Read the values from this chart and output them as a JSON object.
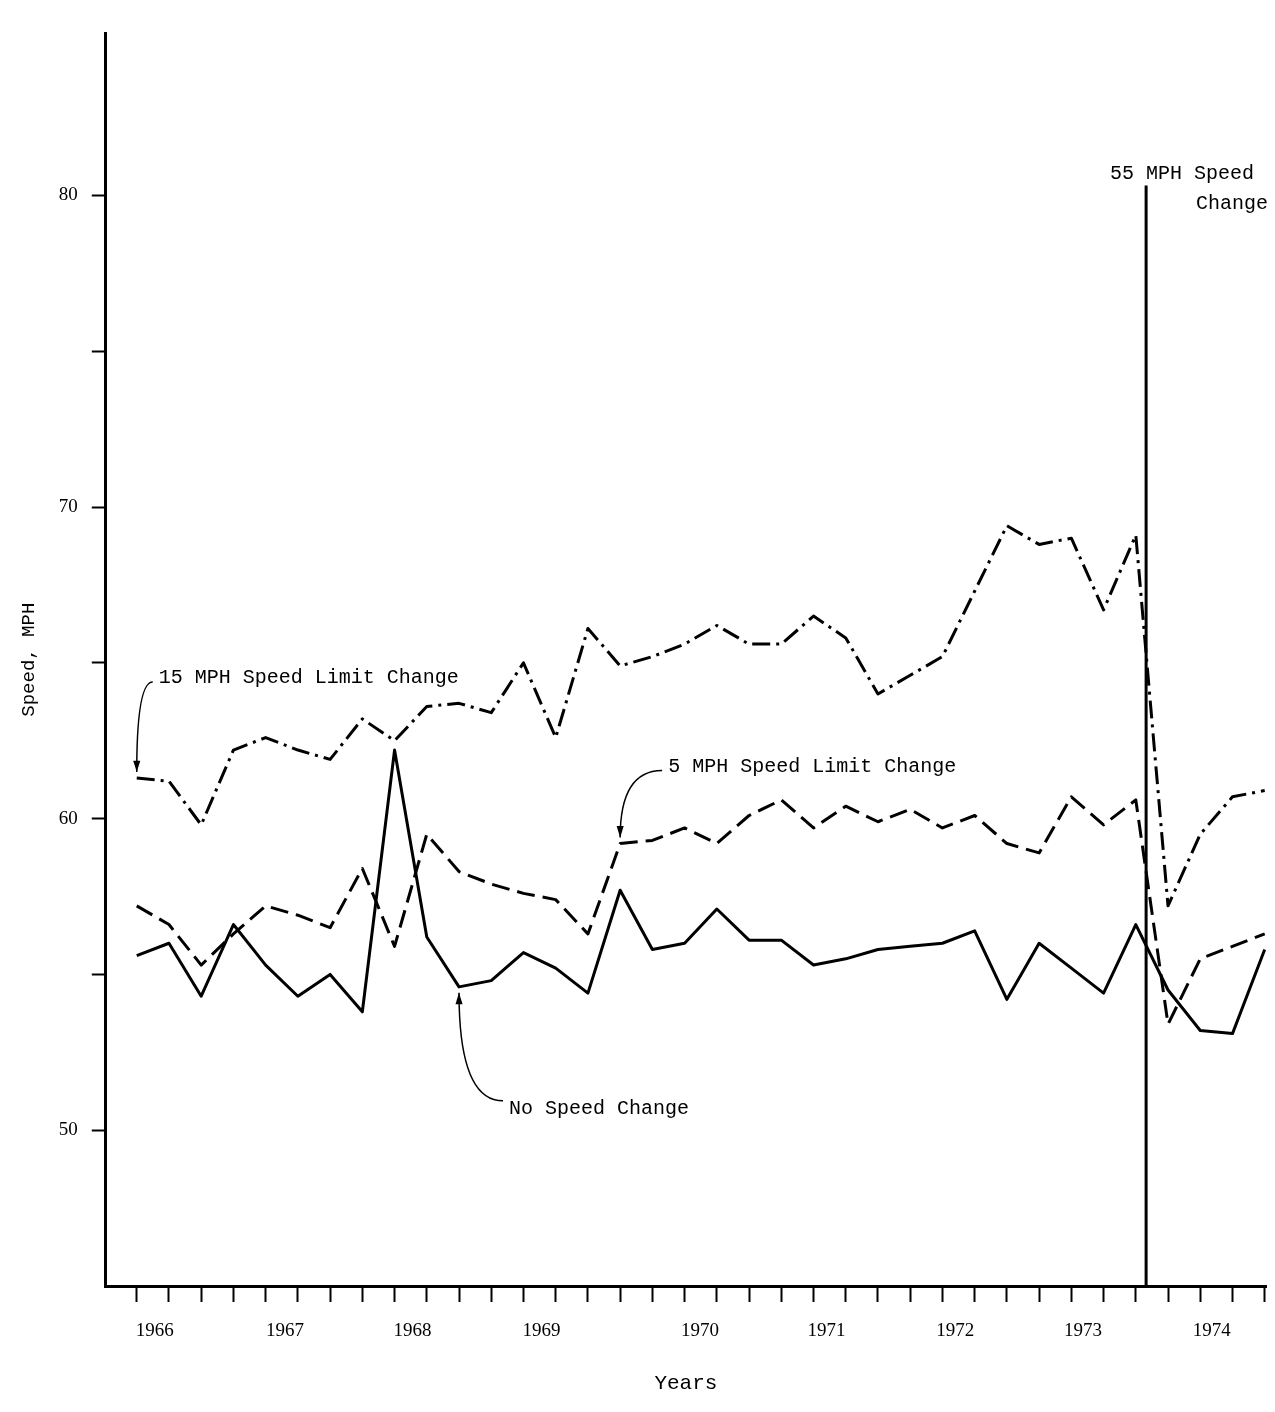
{
  "chart_data": {
    "type": "line",
    "xlabel": "Years",
    "ylabel": "Speed, MPH",
    "x": [
      1966,
      1966.25,
      1966.5,
      1966.75,
      1967,
      1967.25,
      1967.5,
      1967.75,
      1968,
      1968.25,
      1968.5,
      1968.75,
      1969,
      1969.25,
      1969.5,
      1969.75,
      1970,
      1970.25,
      1970.5,
      1970.75,
      1971,
      1971.25,
      1971.5,
      1971.75,
      1972,
      1972.25,
      1972.5,
      1972.75,
      1973,
      1973.25,
      1973.5,
      1973.75,
      1974,
      1974.25,
      1974.5,
      1974.75
    ],
    "series": [
      {
        "name": "15 MPH Speed Limit Change",
        "color": "#000000",
        "line_style": "dashdot",
        "values": [
          61.3,
          61.2,
          59.8,
          62.2,
          62.6,
          62.2,
          61.9,
          63.2,
          62.5,
          63.6,
          63.7,
          63.4,
          65.0,
          62.6,
          66.1,
          64.9,
          65.2,
          65.6,
          66.2,
          65.6,
          65.6,
          66.5,
          65.8,
          64.0,
          64.6,
          65.2,
          67.3,
          69.4,
          68.8,
          69.0,
          66.7,
          69.1,
          57.2,
          59.5,
          60.7,
          60.9
        ]
      },
      {
        "name": "5 MPH Speed Limit Change",
        "color": "#000000",
        "line_style": "dashed",
        "values": [
          57.2,
          56.6,
          55.3,
          56.3,
          57.2,
          56.9,
          56.5,
          58.4,
          55.9,
          59.5,
          58.3,
          57.9,
          57.6,
          57.4,
          56.3,
          59.2,
          59.3,
          59.7,
          59.2,
          60.1,
          60.6,
          59.7,
          60.4,
          59.9,
          60.3,
          59.7,
          60.1,
          59.2,
          58.9,
          60.7,
          59.8,
          60.6,
          53.4,
          55.5,
          55.9,
          56.3
        ]
      },
      {
        "name": "No Speed Change",
        "color": "#000000",
        "line_style": "solid",
        "values": [
          55.6,
          56.0,
          54.3,
          56.6,
          55.3,
          54.3,
          55.0,
          53.8,
          62.2,
          56.2,
          54.6,
          54.8,
          55.7,
          55.2,
          54.4,
          57.7,
          55.8,
          56.0,
          57.1,
          56.1,
          56.1,
          55.3,
          55.5,
          55.8,
          55.9,
          56.0,
          56.4,
          54.2,
          56.0,
          55.2,
          54.4,
          56.6,
          54.5,
          53.2,
          53.1,
          55.8
        ]
      }
    ],
    "xlim": [
      1965.76,
      1974.76
    ],
    "xticks": [
      {
        "value": 1966,
        "label": null
      },
      {
        "value": 1966.25,
        "label": null
      },
      {
        "value": 1966.5,
        "label": null
      },
      {
        "value": 1966.75,
        "label": null
      },
      {
        "value": 1967,
        "label": null
      },
      {
        "value": 1967.25,
        "label": null
      },
      {
        "value": 1967.5,
        "label": null
      },
      {
        "value": 1967.75,
        "label": null
      },
      {
        "value": 1968,
        "label": null
      },
      {
        "value": 1968.25,
        "label": null
      },
      {
        "value": 1968.5,
        "label": null
      },
      {
        "value": 1968.75,
        "label": null
      },
      {
        "value": 1969,
        "label": null
      },
      {
        "value": 1969.25,
        "label": null
      },
      {
        "value": 1969.5,
        "label": null
      },
      {
        "value": 1969.75,
        "label": null
      },
      {
        "value": 1970,
        "label": null
      },
      {
        "value": 1970.25,
        "label": null
      },
      {
        "value": 1970.5,
        "label": null
      },
      {
        "value": 1970.75,
        "label": null
      },
      {
        "value": 1971,
        "label": null
      },
      {
        "value": 1971.25,
        "label": null
      },
      {
        "value": 1971.5,
        "label": null
      },
      {
        "value": 1971.75,
        "label": null
      },
      {
        "value": 1972,
        "label": null
      },
      {
        "value": 1972.25,
        "label": null
      },
      {
        "value": 1972.5,
        "label": null
      },
      {
        "value": 1972.75,
        "label": null
      },
      {
        "value": 1973,
        "label": null
      },
      {
        "value": 1973.25,
        "label": null
      },
      {
        "value": 1973.5,
        "label": null
      },
      {
        "value": 1973.75,
        "label": null
      },
      {
        "value": 1974,
        "label": null
      },
      {
        "value": 1974.25,
        "label": null
      },
      {
        "value": 1974.5,
        "label": null
      },
      {
        "value": 1974.75,
        "label": null
      },
      {
        "value": 1966.14,
        "label": "1966"
      },
      {
        "value": 1967.15,
        "label": "1967"
      },
      {
        "value": 1968.14,
        "label": "1968"
      },
      {
        "value": 1969.14,
        "label": "1969"
      },
      {
        "value": 1970.37,
        "label": "1970"
      },
      {
        "value": 1971.35,
        "label": "1971"
      },
      {
        "value": 1972.35,
        "label": "1972"
      },
      {
        "value": 1973.34,
        "label": "1973"
      },
      {
        "value": 1974.34,
        "label": "1974"
      }
    ],
    "ylim": [
      45,
      85.2
    ],
    "yticks": [
      50,
      {
        "value": 55,
        "label": null
      },
      60,
      {
        "value": 65,
        "label": null
      },
      70,
      {
        "value": 75,
        "label": null
      },
      80
    ],
    "ref_lines": [
      {
        "axis": "x",
        "value": 1973.83,
        "label": "55 MPH Speed Change",
        "color": "#000000"
      }
    ]
  }
}
